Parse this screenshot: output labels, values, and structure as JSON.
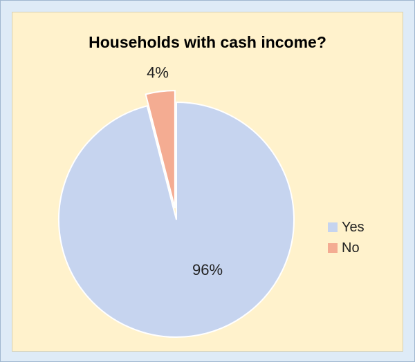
{
  "chart_data": {
    "type": "pie",
    "title": "Households with cash income?",
    "categories": [
      "Yes",
      "No"
    ],
    "values": [
      96,
      4
    ],
    "labels": [
      "96%",
      "4%"
    ],
    "colors": [
      "#c6d4ef",
      "#f4ac92"
    ],
    "exploded": [
      "",
      "No"
    ],
    "legend_position": "right"
  }
}
